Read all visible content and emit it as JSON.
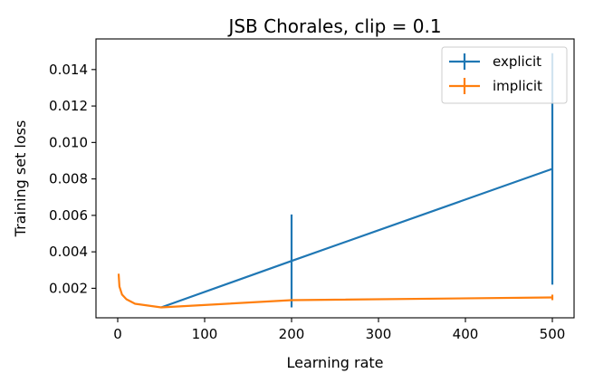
{
  "chart_data": {
    "type": "line",
    "title": "JSB Chorales, clip = 0.1",
    "xlabel": "Learning rate",
    "ylabel": "Training set loss",
    "xlim": [
      -25,
      525
    ],
    "ylim": [
      0.00038,
      0.01568
    ],
    "xticks": [
      0,
      100,
      200,
      300,
      400,
      500
    ],
    "xtick_labels": [
      "0",
      "100",
      "200",
      "300",
      "400",
      "500"
    ],
    "yticks": [
      0.002,
      0.004,
      0.006,
      0.008,
      0.01,
      0.012,
      0.014
    ],
    "ytick_labels": [
      "0.002",
      "0.004",
      "0.006",
      "0.008",
      "0.010",
      "0.012",
      "0.014"
    ],
    "grid": false,
    "legend_position": "top-right",
    "series": [
      {
        "name": "explicit",
        "color": "#1f77b4",
        "x": [
          50,
          200,
          500
        ],
        "y": [
          0.00095,
          0.0035,
          0.00855
        ],
        "yerr_low": [
          0.00095,
          0.00095,
          0.0022
        ],
        "yerr_high": [
          0.00095,
          0.00605,
          0.0149
        ]
      },
      {
        "name": "implicit",
        "color": "#ff7f0e",
        "x": [
          1,
          2,
          5,
          10,
          20,
          50,
          200,
          500
        ],
        "y": [
          0.0028,
          0.0021,
          0.00165,
          0.0014,
          0.00115,
          0.00095,
          0.00135,
          0.0015
        ],
        "yerr_low": [
          0.0028,
          0.0021,
          0.00165,
          0.0014,
          0.00115,
          0.00095,
          0.00132,
          0.00135
        ],
        "yerr_high": [
          0.0028,
          0.0021,
          0.00165,
          0.0014,
          0.00115,
          0.00095,
          0.00138,
          0.00165
        ]
      }
    ]
  }
}
